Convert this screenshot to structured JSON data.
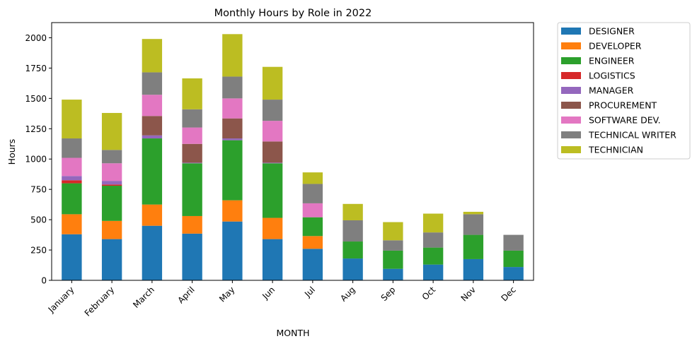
{
  "chart_data": {
    "type": "bar",
    "stacked": true,
    "title": "Monthly Hours by Role in 2022",
    "xlabel": "MONTH",
    "ylabel": "Hours",
    "ylim": [
      0,
      2125
    ],
    "yticks": [
      0,
      250,
      500,
      750,
      1000,
      1250,
      1500,
      1750,
      2000
    ],
    "categories": [
      "January",
      "February",
      "March",
      "April",
      "May",
      "Jun",
      "Jul",
      "Aug",
      "Sep",
      "Oct",
      "Nov",
      "Dec"
    ],
    "legend_position": "outside-right",
    "series": [
      {
        "name": "DESIGNER",
        "color": "#1f77b4",
        "values": [
          380,
          340,
          450,
          385,
          485,
          340,
          260,
          180,
          95,
          130,
          175,
          110
        ]
      },
      {
        "name": "DEVELOPER",
        "color": "#ff7f0e",
        "values": [
          165,
          150,
          175,
          145,
          175,
          175,
          105,
          0,
          0,
          0,
          0,
          0
        ]
      },
      {
        "name": "ENGINEER",
        "color": "#2ca02c",
        "values": [
          255,
          290,
          545,
          435,
          495,
          450,
          155,
          140,
          150,
          140,
          200,
          135
        ]
      },
      {
        "name": "LOGISTICS",
        "color": "#d62728",
        "values": [
          25,
          10,
          0,
          0,
          0,
          0,
          0,
          0,
          0,
          0,
          0,
          0
        ]
      },
      {
        "name": "MANAGER",
        "color": "#9467bd",
        "values": [
          35,
          30,
          25,
          5,
          15,
          5,
          0,
          0,
          0,
          0,
          0,
          0
        ]
      },
      {
        "name": "PROCUREMENT",
        "color": "#8c564b",
        "values": [
          0,
          0,
          160,
          155,
          165,
          175,
          0,
          0,
          0,
          0,
          0,
          0
        ]
      },
      {
        "name": "SOFTWARE DEV.",
        "color": "#e377c2",
        "values": [
          150,
          145,
          175,
          135,
          165,
          170,
          115,
          0,
          0,
          0,
          0,
          0
        ]
      },
      {
        "name": "TECHNICAL WRITER",
        "color": "#7f7f7f",
        "values": [
          160,
          110,
          185,
          150,
          180,
          175,
          160,
          175,
          85,
          125,
          170,
          130
        ]
      },
      {
        "name": "TECHNICIAN",
        "color": "#bcbd22",
        "values": [
          320,
          305,
          275,
          255,
          350,
          270,
          95,
          135,
          150,
          155,
          20,
          0
        ]
      }
    ]
  }
}
